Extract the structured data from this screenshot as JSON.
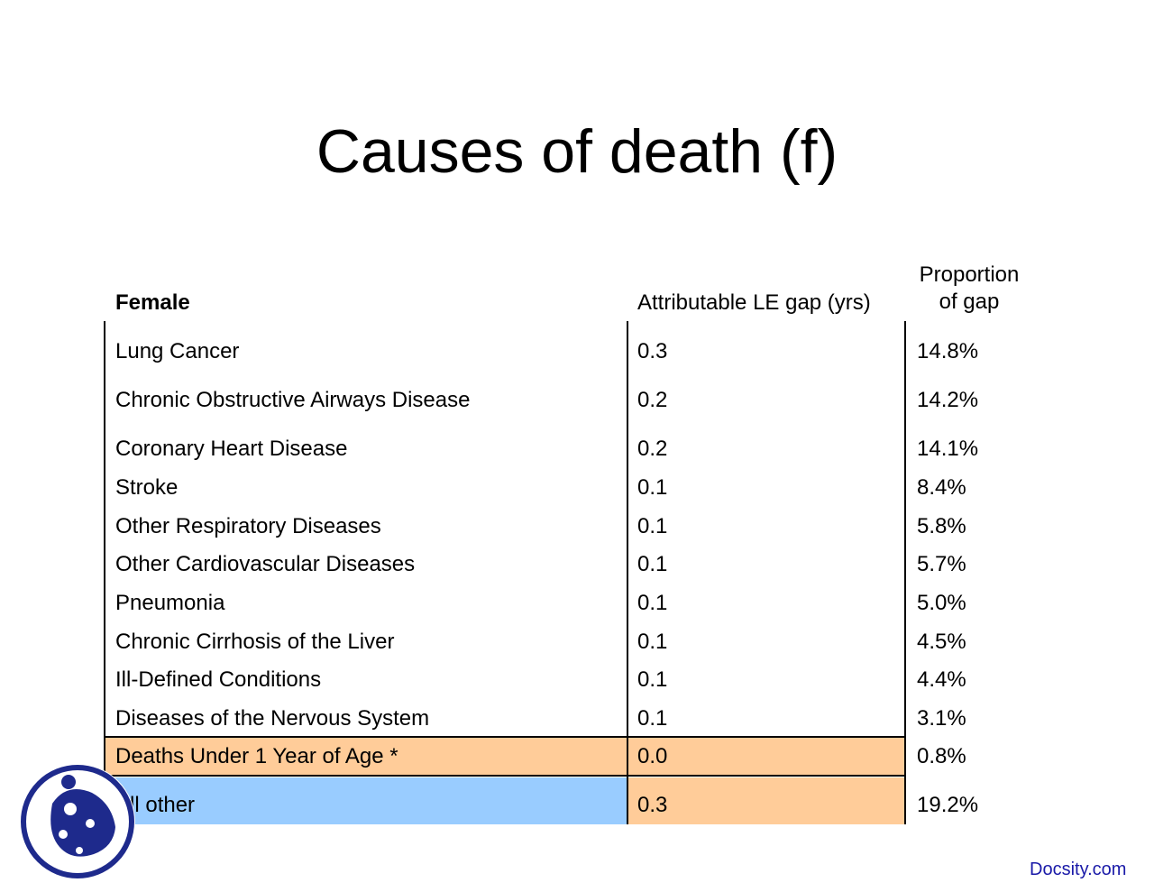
{
  "title": "Causes of death (f)",
  "table": {
    "headers": {
      "cause": "Female",
      "gap": "Attributable LE gap (yrs)",
      "proportion_line1": "Proportion",
      "proportion_line2": "of gap"
    },
    "rows": [
      {
        "cause": "Lung Cancer",
        "gap": "0.3",
        "proportion": "14.8%"
      },
      {
        "cause": "Chronic Obstructive Airways Disease",
        "gap": "0.2",
        "proportion": "14.2%"
      },
      {
        "cause": "Coronary Heart Disease",
        "gap": "0.2",
        "proportion": "14.1%"
      },
      {
        "cause": "Stroke",
        "gap": "0.1",
        "proportion": "8.4%"
      },
      {
        "cause": "Other Respiratory Diseases",
        "gap": "0.1",
        "proportion": "5.8%"
      },
      {
        "cause": "Other Cardiovascular Diseases",
        "gap": "0.1",
        "proportion": "5.7%"
      },
      {
        "cause": "Pneumonia",
        "gap": "0.1",
        "proportion": "5.0%"
      },
      {
        "cause": "Chronic Cirrhosis of the Liver",
        "gap": "0.1",
        "proportion": "4.5%"
      },
      {
        "cause": "Ill-Defined Conditions",
        "gap": "0.1",
        "proportion": "4.4%"
      },
      {
        "cause": "Diseases of the Nervous System",
        "gap": "0.1",
        "proportion": "3.1%"
      },
      {
        "cause": "Deaths Under 1 Year of Age *",
        "gap": "0.0",
        "proportion": "0.8%"
      },
      {
        "cause": "All other",
        "gap": "0.3",
        "proportion": "19.2%"
      }
    ]
  },
  "colors": {
    "highlight_orange": "#ffcc99",
    "highlight_blue": "#99ccff",
    "logo_blue": "#1e2a8c",
    "footer_link": "#1a1aa8"
  },
  "footer": "Docsity.com",
  "logo": {
    "icon": "docsity-ladybug-logo-icon"
  }
}
